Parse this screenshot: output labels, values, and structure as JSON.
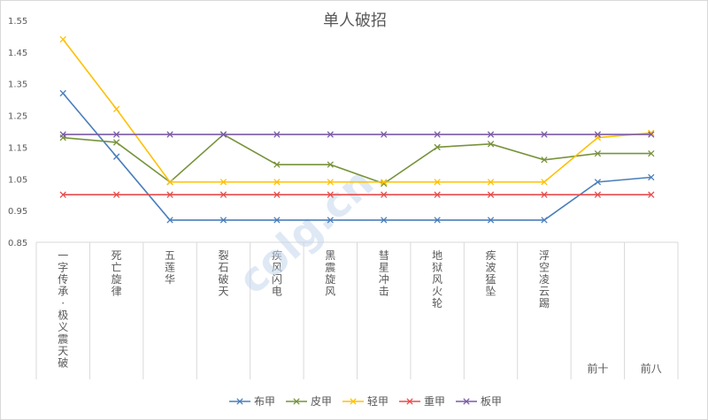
{
  "chart_data": {
    "type": "line",
    "title": "单人破招",
    "xlabel": "",
    "ylabel": "",
    "ylim": [
      0.85,
      1.55
    ],
    "yticks": [
      0.85,
      0.95,
      1.05,
      1.15,
      1.25,
      1.35,
      1.45,
      1.55
    ],
    "ytick_labels": [
      "0.85",
      "0.95",
      "1.05",
      "1.15",
      "1.25",
      "1.35",
      "1.45",
      "1.55"
    ],
    "grid": false,
    "legend_position": "bottom",
    "categories": [
      "一字传承·极义震天破",
      "死亡旋律",
      "五莲华",
      "裂石破天",
      "疾风闪电",
      "黑震旋风",
      "彗星冲击",
      "地狱风火轮",
      "疾波猛坠",
      "浮空凌云踢",
      "前十",
      "前八"
    ],
    "series": [
      {
        "name": "布甲",
        "color": "#4a7ebb",
        "values": [
          1.32,
          1.12,
          0.92,
          0.92,
          0.92,
          0.92,
          0.92,
          0.92,
          0.92,
          0.92,
          1.04,
          1.055
        ]
      },
      {
        "name": "皮甲",
        "color": "#77933c",
        "values": [
          1.18,
          1.165,
          1.04,
          1.19,
          1.095,
          1.095,
          1.035,
          1.15,
          1.16,
          1.11,
          1.13,
          1.13
        ]
      },
      {
        "name": "轻甲",
        "color": "#ffc000",
        "values": [
          1.49,
          1.27,
          1.04,
          1.04,
          1.04,
          1.04,
          1.04,
          1.04,
          1.04,
          1.04,
          1.18,
          1.195
        ]
      },
      {
        "name": "重甲",
        "color": "#e84c4c",
        "values": [
          1.0,
          1.0,
          1.0,
          1.0,
          1.0,
          1.0,
          1.0,
          1.0,
          1.0,
          1.0,
          1.0,
          1.0
        ]
      },
      {
        "name": "板甲",
        "color": "#7b5aa6",
        "values": [
          1.19,
          1.19,
          1.19,
          1.19,
          1.19,
          1.19,
          1.19,
          1.19,
          1.19,
          1.19,
          1.19,
          1.19
        ]
      }
    ]
  },
  "watermark": "colg.cn"
}
